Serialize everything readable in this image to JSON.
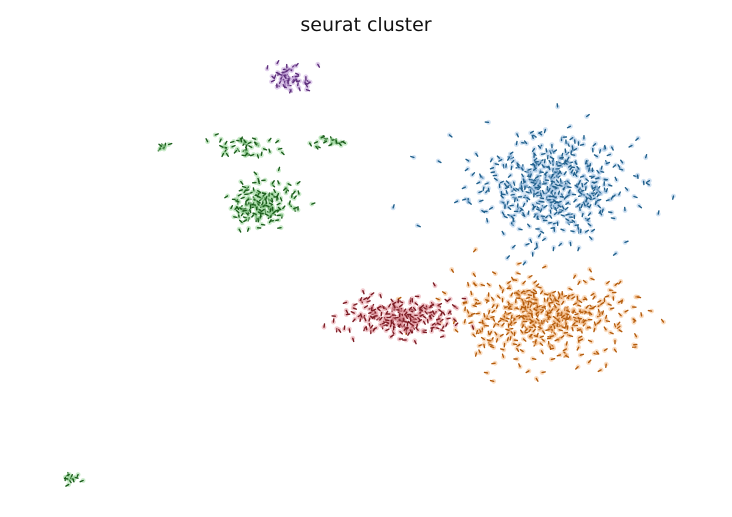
{
  "chart_data": {
    "type": "scatter",
    "title": "seurat cluster",
    "xlabel": "",
    "ylabel": "",
    "grid": false,
    "axes_visible": false,
    "legend": "none",
    "xlim": [
      -14,
      14
    ],
    "ylim": [
      -12,
      12
    ],
    "series": [
      {
        "color": "#1f5f8b",
        "light": "#a9c8e8",
        "clusters": [
          {
            "cx": 7.8,
            "cy": 5.1,
            "sx": 3.0,
            "sy": 2.5,
            "n": 520
          }
        ]
      },
      {
        "color": "#b35a0a",
        "light": "#f5c08c",
        "clusters": [
          {
            "cx": 7.6,
            "cy": -2.0,
            "sx": 3.4,
            "sy": 1.9,
            "n": 470
          }
        ]
      },
      {
        "color": "#7a1a22",
        "light": "#e8a0a8",
        "clusters": [
          {
            "cx": 1.5,
            "cy": -2.0,
            "sx": 2.0,
            "sy": 0.9,
            "n": 240
          }
        ]
      },
      {
        "color": "#1a5c1a",
        "light": "#9fd99f",
        "clusters": [
          {
            "cx": -4.4,
            "cy": 4.1,
            "sx": 1.2,
            "sy": 1.2,
            "n": 170
          },
          {
            "cx": -5.2,
            "cy": 7.2,
            "sx": 1.1,
            "sy": 0.6,
            "n": 45
          },
          {
            "cx": -1.6,
            "cy": 7.5,
            "sx": 0.9,
            "sy": 0.3,
            "n": 20
          },
          {
            "cx": -8.7,
            "cy": 7.2,
            "sx": 0.3,
            "sy": 0.2,
            "n": 8
          },
          {
            "cx": -12.6,
            "cy": -10.8,
            "sx": 0.3,
            "sy": 0.3,
            "n": 12
          }
        ]
      },
      {
        "color": "#5c2d7a",
        "light": "#c9a9dc",
        "clusters": [
          {
            "cx": -3.3,
            "cy": 11.0,
            "sx": 0.9,
            "sy": 0.8,
            "n": 60
          }
        ]
      }
    ]
  }
}
